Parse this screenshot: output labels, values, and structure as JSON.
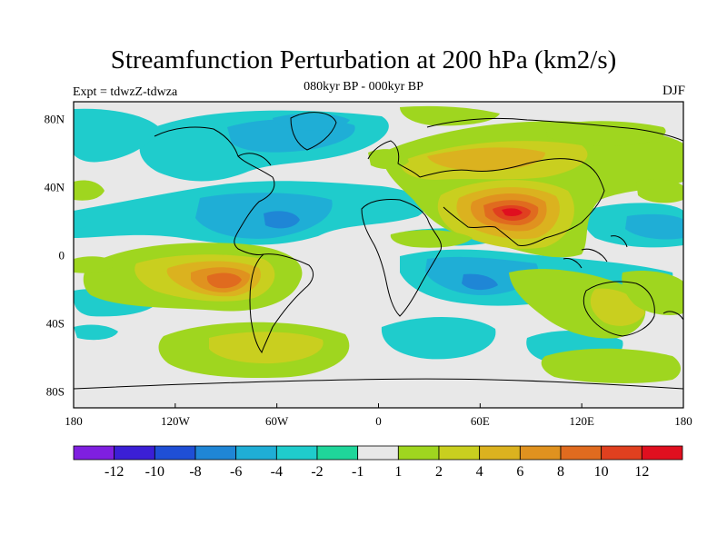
{
  "title": "Streamfunction Perturbation at 200 hPa (km2/s)",
  "subtitle": "080kyr BP - 000kyr BP",
  "experiment": "Expt = tdwzZ-tdwza",
  "season": "DJF",
  "lat_axis": {
    "range": [
      -90,
      90
    ],
    "ticks": [
      {
        "value": 80,
        "label": "80N"
      },
      {
        "value": 40,
        "label": "40N"
      },
      {
        "value": 0,
        "label": "0"
      },
      {
        "value": -40,
        "label": "40S"
      },
      {
        "value": -80,
        "label": "80S"
      }
    ]
  },
  "lon_axis": {
    "range": [
      -180,
      180
    ],
    "ticks": [
      {
        "value": -180,
        "label": "180"
      },
      {
        "value": -120,
        "label": "120W"
      },
      {
        "value": -60,
        "label": "60W"
      },
      {
        "value": 0,
        "label": "0"
      },
      {
        "value": 60,
        "label": "60E"
      },
      {
        "value": 120,
        "label": "120E"
      },
      {
        "value": 180,
        "label": "180"
      }
    ]
  },
  "colorbar": {
    "colors": [
      "#7f1fe0",
      "#3b1fd6",
      "#1f4fd6",
      "#1f86d6",
      "#1faed6",
      "#1fcccc",
      "#1fd69a",
      "#e8e8e8",
      "#9fd61f",
      "#c9cf1f",
      "#dbb21f",
      "#e0921f",
      "#e06b1f",
      "#e0401f",
      "#e00f1f"
    ],
    "labels": [
      "-12",
      "-10",
      "-8",
      "-6",
      "-4",
      "-2",
      "-1",
      "1",
      "2",
      "4",
      "6",
      "8",
      "10",
      "12"
    ]
  }
}
